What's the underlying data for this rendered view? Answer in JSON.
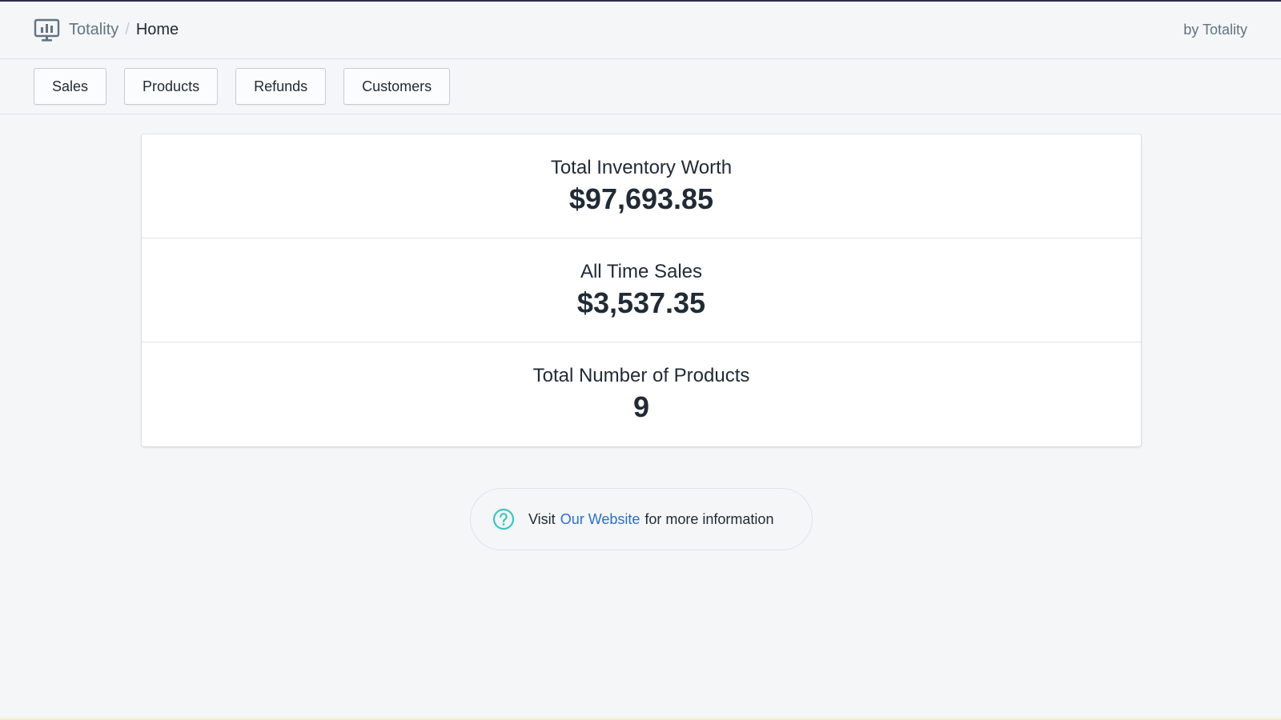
{
  "header": {
    "app_name": "Totality",
    "separator": "/",
    "page_title": "Home",
    "byline": "by Totality",
    "app_icon": "dashboard-icon"
  },
  "tabs": [
    {
      "label": "Sales"
    },
    {
      "label": "Products"
    },
    {
      "label": "Refunds"
    },
    {
      "label": "Customers"
    }
  ],
  "stats": [
    {
      "label": "Total Inventory Worth",
      "value": "$97,693.85"
    },
    {
      "label": "All Time Sales",
      "value": "$3,537.35"
    },
    {
      "label": "Total Number of Products",
      "value": "9"
    }
  ],
  "footer": {
    "prefix": "Visit",
    "link_text": "Our Website",
    "suffix": "for more information",
    "icon": "question-circle-icon"
  },
  "colors": {
    "background": "#f4f6f8",
    "text": "#212b36",
    "muted": "#637381",
    "link": "#2c6ecb",
    "help_icon": "#47c1bf"
  }
}
